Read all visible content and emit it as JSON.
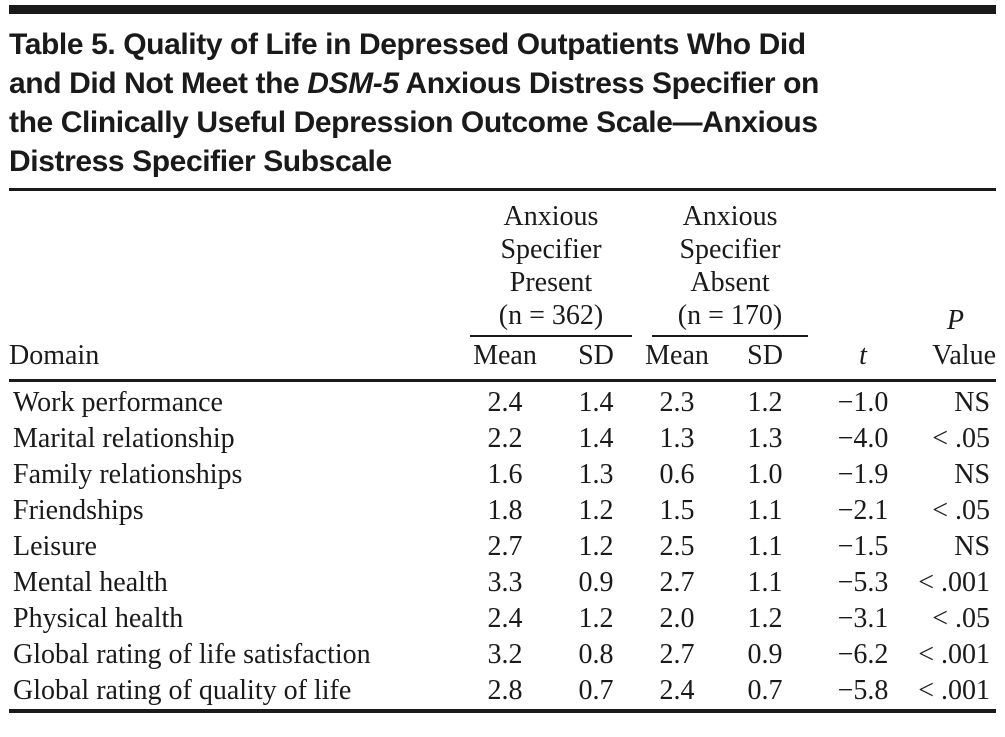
{
  "page": {
    "ink_color": "#1a1a1a",
    "background_color": "#ffffff"
  },
  "title": {
    "line1": "Table 5. Quality of Life in Depressed Outpatients Who Did",
    "line2_before_italic": "and Did Not Meet the ",
    "line2_italic": "DSM-5",
    "line2_after_italic": " Anxious Distress Specifier on",
    "line3": "the Clinically Useful Depression Outcome Scale—Anxious",
    "line4": "Distress Specifier Subscale"
  },
  "table": {
    "domain_header": "Domain",
    "groups": [
      {
        "lines": [
          "Anxious",
          "Specifier",
          "Present",
          "(n = 362)"
        ]
      },
      {
        "lines": [
          "Anxious",
          "Specifier",
          "Absent",
          "(n = 170)"
        ]
      }
    ],
    "sub_headers": {
      "mean": "Mean",
      "sd": "SD",
      "t": "t",
      "p_top": "P",
      "p_bottom": "Value"
    },
    "rows": [
      {
        "domain": "Work performance",
        "present_mean": "2.4",
        "present_sd": "1.4",
        "absent_mean": "2.3",
        "absent_sd": "1.2",
        "t": "−1.0",
        "p": "NS"
      },
      {
        "domain": "Marital relationship",
        "present_mean": "2.2",
        "present_sd": "1.4",
        "absent_mean": "1.3",
        "absent_sd": "1.3",
        "t": "−4.0",
        "p": "< .05"
      },
      {
        "domain": "Family relationships",
        "present_mean": "1.6",
        "present_sd": "1.3",
        "absent_mean": "0.6",
        "absent_sd": "1.0",
        "t": "−1.9",
        "p": "NS"
      },
      {
        "domain": "Friendships",
        "present_mean": "1.8",
        "present_sd": "1.2",
        "absent_mean": "1.5",
        "absent_sd": "1.1",
        "t": "−2.1",
        "p": "< .05"
      },
      {
        "domain": "Leisure",
        "present_mean": "2.7",
        "present_sd": "1.2",
        "absent_mean": "2.5",
        "absent_sd": "1.1",
        "t": "−1.5",
        "p": "NS"
      },
      {
        "domain": "Mental health",
        "present_mean": "3.3",
        "present_sd": "0.9",
        "absent_mean": "2.7",
        "absent_sd": "1.1",
        "t": "−5.3",
        "p": "< .001"
      },
      {
        "domain": "Physical health",
        "present_mean": "2.4",
        "present_sd": "1.2",
        "absent_mean": "2.0",
        "absent_sd": "1.2",
        "t": "−3.1",
        "p": "< .05"
      },
      {
        "domain": "Global rating of life satisfaction",
        "present_mean": "3.2",
        "present_sd": "0.8",
        "absent_mean": "2.7",
        "absent_sd": "0.9",
        "t": "−6.2",
        "p": "< .001"
      },
      {
        "domain": "Global rating of quality of life",
        "present_mean": "2.8",
        "present_sd": "0.7",
        "absent_mean": "2.4",
        "absent_sd": "0.7",
        "t": "−5.8",
        "p": "< .001"
      }
    ]
  }
}
